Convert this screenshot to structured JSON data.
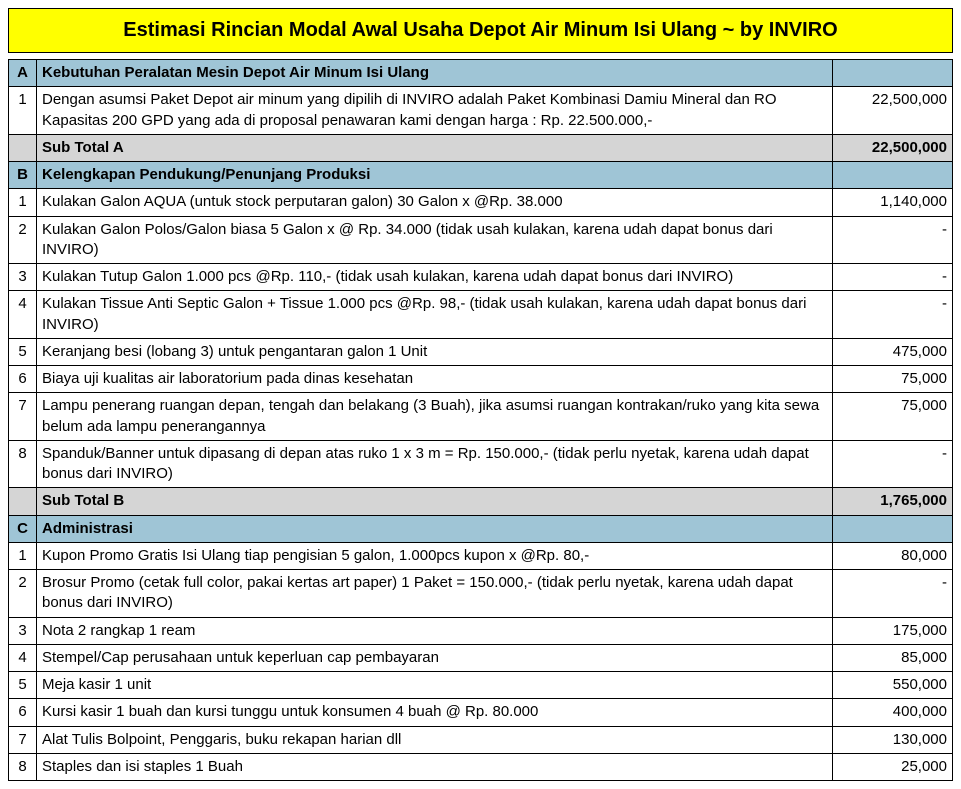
{
  "title": "Estimasi Rincian Modal Awal Usaha Depot Air Minum Isi Ulang ~ by INVIRO",
  "colors": {
    "title_bg": "#ffff00",
    "section_bg": "#9fc5d6",
    "subtotal_bg": "#d5d5d5",
    "border": "#000000",
    "text": "#000000"
  },
  "layout": {
    "col_num_width": 28,
    "col_amt_width": 120,
    "font_size": 15,
    "title_font_size": 20
  },
  "sections": {
    "A": {
      "letter": "A",
      "heading": "Kebutuhan Peralatan Mesin Depot Air Minum Isi Ulang",
      "rows": [
        {
          "n": "1",
          "desc": "Dengan asumsi Paket Depot air minum yang dipilih di INVIRO adalah Paket Kombinasi Damiu Mineral dan RO Kapasitas 200 GPD yang ada di proposal penawaran kami dengan harga : Rp. 22.500.000,-",
          "amt": "22,500,000"
        }
      ],
      "subtotal_label": "Sub Total A",
      "subtotal": "22,500,000"
    },
    "B": {
      "letter": "B",
      "heading": "Kelengkapan Pendukung/Penunjang Produksi",
      "rows": [
        {
          "n": "1",
          "desc": "Kulakan Galon AQUA (untuk stock perputaran galon) 30 Galon x @Rp. 38.000",
          "amt": "1,140,000"
        },
        {
          "n": "2",
          "desc": "Kulakan Galon Polos/Galon biasa 5 Galon x @ Rp. 34.000 (tidak usah kulakan, karena udah dapat bonus dari INVIRO)",
          "amt": "-"
        },
        {
          "n": "3",
          "desc": "Kulakan Tutup Galon 1.000 pcs @Rp. 110,- (tidak usah kulakan, karena udah dapat bonus dari INVIRO)",
          "amt": "-"
        },
        {
          "n": "4",
          "desc": "Kulakan Tissue Anti Septic Galon + Tissue 1.000 pcs @Rp. 98,- (tidak usah kulakan, karena udah dapat bonus dari INVIRO)",
          "amt": "-"
        },
        {
          "n": "5",
          "desc": "Keranjang besi (lobang 3) untuk pengantaran galon 1 Unit",
          "amt": "475,000"
        },
        {
          "n": "6",
          "desc": "Biaya uji kualitas air laboratorium pada dinas kesehatan",
          "amt": "75,000"
        },
        {
          "n": "7",
          "desc": "Lampu penerang ruangan depan, tengah dan belakang (3 Buah), jika asumsi ruangan kontrakan/ruko yang kita sewa belum ada lampu penerangannya",
          "amt": "75,000"
        },
        {
          "n": "8",
          "desc": "Spanduk/Banner untuk dipasang di depan atas ruko 1 x 3 m = Rp. 150.000,- (tidak perlu nyetak, karena udah dapat bonus dari INVIRO)",
          "amt": "-"
        }
      ],
      "subtotal_label": "Sub Total B",
      "subtotal": "1,765,000"
    },
    "C": {
      "letter": "C",
      "heading": "Administrasi",
      "rows": [
        {
          "n": "1",
          "desc": "Kupon Promo Gratis Isi Ulang tiap pengisian 5 galon, 1.000pcs kupon x @Rp. 80,-",
          "amt": "80,000"
        },
        {
          "n": "2",
          "desc": "Brosur Promo (cetak full color, pakai kertas art paper) 1 Paket = 150.000,- (tidak perlu nyetak, karena udah dapat bonus dari INVIRO)",
          "amt": "-"
        },
        {
          "n": "3",
          "desc": "Nota 2 rangkap 1 ream",
          "amt": "175,000"
        },
        {
          "n": "4",
          "desc": "Stempel/Cap perusahaan untuk keperluan cap pembayaran",
          "amt": "85,000"
        },
        {
          "n": "5",
          "desc": "Meja kasir 1 unit",
          "amt": "550,000"
        },
        {
          "n": "6",
          "desc": "Kursi kasir 1 buah dan kursi tunggu untuk konsumen 4 buah @ Rp. 80.000",
          "amt": "400,000"
        },
        {
          "n": "7",
          "desc": "Alat Tulis Bolpoint, Penggaris, buku rekapan harian dll",
          "amt": "130,000"
        },
        {
          "n": "8",
          "desc": "Staples dan isi staples 1 Buah",
          "amt": "25,000"
        }
      ]
    }
  }
}
